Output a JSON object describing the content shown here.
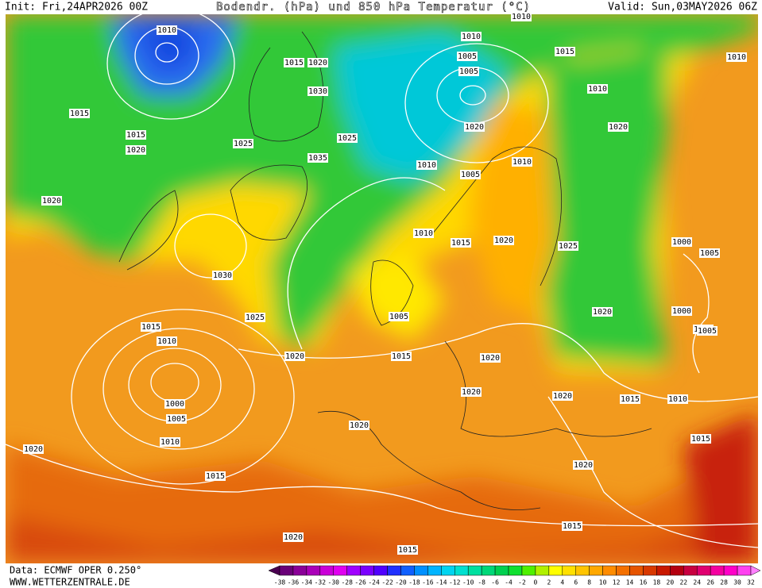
{
  "header": {
    "init": "Init: Fri,24APR2026 00Z",
    "title": "Bodendr. (hPa) und 850 hPa Temperatur (°C)",
    "valid": "Valid: Sun,03MAY2026 06Z"
  },
  "footer": {
    "data": "Data: ECMWF OPER 0.250°",
    "website": "WWW.WETTERZENTRALE.DE"
  },
  "isobar_labels": [
    "1010",
    "1015",
    "1020",
    "1015",
    "1020",
    "1025",
    "1030",
    "1025",
    "1035",
    "1010",
    "1005",
    "1000",
    "1010",
    "1015",
    "1005",
    "1010",
    "1020",
    "1005",
    "1010",
    "1015",
    "1020",
    "1030",
    "1025",
    "1015",
    "1010",
    "1000",
    "1005",
    "1010",
    "1020",
    "1020",
    "1005",
    "1015",
    "1020",
    "1010",
    "1025",
    "1020",
    "1015",
    "1010",
    "1005",
    "1000",
    "1005",
    "1010",
    "1020",
    "1020",
    "1020",
    "1015",
    "1015",
    "1020",
    "1015",
    "1020",
    "1015",
    "1020",
    "1020",
    "1010",
    "1015",
    "1005"
  ],
  "colorbar": {
    "labels": [
      -38,
      -36,
      -34,
      -32,
      -30,
      -28,
      -26,
      -24,
      -22,
      -20,
      -18,
      -16,
      -14,
      -12,
      -10,
      -8,
      -6,
      -4,
      -2,
      0,
      2,
      4,
      6,
      8,
      10,
      12,
      14,
      16,
      18,
      20,
      22,
      24,
      26,
      28,
      30,
      32
    ],
    "colors": [
      "#4a0050",
      "#6a0078",
      "#8a0098",
      "#aa00b8",
      "#ca00d8",
      "#e000f0",
      "#a000ff",
      "#7a00ff",
      "#5000ff",
      "#2030ff",
      "#1060ff",
      "#0090ff",
      "#00b4ff",
      "#00d4f0",
      "#00e0d0",
      "#00e0a0",
      "#00d878",
      "#00d050",
      "#10e030",
      "#50f000",
      "#b0f000",
      "#ffff00",
      "#ffe000",
      "#ffc400",
      "#ffa800",
      "#ff8c00",
      "#f47000",
      "#e65400",
      "#d83800",
      "#c81800",
      "#b40010",
      "#c80040",
      "#e00070",
      "#f400a0",
      "#ff00c8",
      "#ff40f0",
      "#ff80ff"
    ]
  }
}
